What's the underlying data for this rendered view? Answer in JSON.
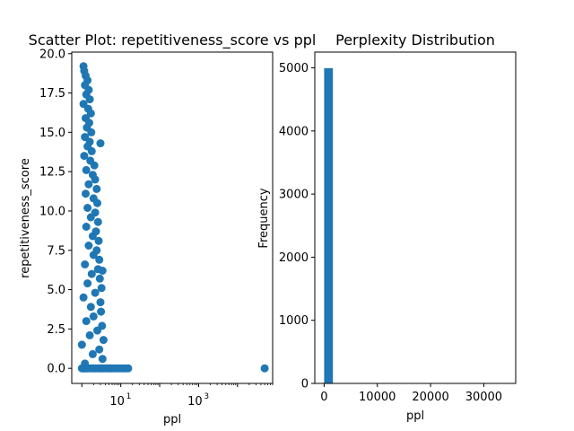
{
  "chart_data": [
    {
      "type": "scatter",
      "title": "Scatter Plot: repetitiveness_score vs ppl",
      "xlabel": "ppl",
      "ylabel": "repetitiveness_score",
      "xscale": "log",
      "xlim": [
        0.55,
        80000
      ],
      "ylim": [
        -0.96,
        20.1
      ],
      "x_ticks": [
        {
          "value": 10,
          "base": "10",
          "exp": "1"
        },
        {
          "value": 1000,
          "base": "10",
          "exp": "3"
        }
      ],
      "y_ticks": [
        "0.0",
        "2.5",
        "5.0",
        "7.5",
        "10.0",
        "12.5",
        "15.0",
        "17.5",
        "20.0"
      ],
      "marker_color": "#1f77b4",
      "grid": false,
      "series": [
        {
          "points": [
            [
              1.0,
              0
            ],
            [
              1.05,
              0
            ],
            [
              1.1,
              0
            ],
            [
              1.2,
              0
            ],
            [
              1.3,
              0
            ],
            [
              1.4,
              0
            ],
            [
              1.6,
              0
            ],
            [
              1.8,
              0
            ],
            [
              2.0,
              0
            ],
            [
              2.2,
              0
            ],
            [
              2.5,
              0
            ],
            [
              2.8,
              0
            ],
            [
              3.0,
              0
            ],
            [
              3.3,
              0
            ],
            [
              3.6,
              0
            ],
            [
              4.0,
              0
            ],
            [
              4.5,
              0
            ],
            [
              5.0,
              0
            ],
            [
              5.5,
              0
            ],
            [
              6.0,
              0
            ],
            [
              7.0,
              0
            ],
            [
              8.0,
              0
            ],
            [
              9.0,
              0
            ],
            [
              10.5,
              0
            ],
            [
              12.0,
              0
            ],
            [
              13.5,
              0
            ],
            [
              15.5,
              0
            ],
            [
              50000,
              0
            ],
            [
              1.1,
              19.2
            ],
            [
              1.15,
              18.9
            ],
            [
              1.25,
              18.6
            ],
            [
              1.4,
              18.3
            ],
            [
              1.2,
              18.0
            ],
            [
              1.5,
              17.7
            ],
            [
              1.3,
              17.4
            ],
            [
              1.6,
              17.1
            ],
            [
              1.1,
              16.8
            ],
            [
              1.45,
              16.5
            ],
            [
              1.7,
              16.2
            ],
            [
              1.25,
              15.9
            ],
            [
              1.55,
              15.6
            ],
            [
              1.35,
              15.3
            ],
            [
              1.75,
              15.0
            ],
            [
              1.2,
              14.7
            ],
            [
              1.6,
              14.4
            ],
            [
              3.0,
              14.3
            ],
            [
              1.4,
              14.1
            ],
            [
              1.8,
              13.8
            ],
            [
              1.15,
              13.5
            ],
            [
              1.65,
              13.2
            ],
            [
              2.1,
              12.9
            ],
            [
              1.3,
              12.6
            ],
            [
              1.9,
              12.3
            ],
            [
              2.2,
              12.0
            ],
            [
              1.5,
              11.7
            ],
            [
              2.4,
              11.4
            ],
            [
              1.25,
              11.1
            ],
            [
              2.0,
              10.8
            ],
            [
              2.5,
              10.5
            ],
            [
              1.4,
              10.2
            ],
            [
              2.2,
              9.9
            ],
            [
              1.7,
              9.6
            ],
            [
              2.6,
              9.3
            ],
            [
              1.3,
              9.0
            ],
            [
              2.3,
              8.7
            ],
            [
              1.9,
              8.4
            ],
            [
              2.7,
              8.1
            ],
            [
              1.5,
              7.8
            ],
            [
              2.4,
              7.5
            ],
            [
              2.0,
              7.2
            ],
            [
              2.8,
              6.9
            ],
            [
              1.2,
              6.6
            ],
            [
              2.6,
              6.3
            ],
            [
              3.4,
              6.2
            ],
            [
              1.8,
              6.0
            ],
            [
              2.9,
              5.7
            ],
            [
              1.4,
              5.4
            ],
            [
              3.2,
              5.1
            ],
            [
              2.2,
              4.8
            ],
            [
              1.1,
              4.5
            ],
            [
              3.0,
              4.2
            ],
            [
              1.7,
              3.9
            ],
            [
              3.1,
              3.6
            ],
            [
              2.0,
              3.3
            ],
            [
              1.3,
              3.0
            ],
            [
              3.3,
              2.7
            ],
            [
              2.5,
              2.4
            ],
            [
              1.6,
              2.1
            ],
            [
              3.6,
              1.8
            ],
            [
              1.0,
              1.5
            ],
            [
              2.8,
              1.2
            ],
            [
              1.9,
              0.9
            ],
            [
              3.4,
              0.6
            ],
            [
              1.2,
              0.3
            ]
          ]
        }
      ]
    },
    {
      "type": "bar",
      "title": "Perplexity Distribution",
      "xlabel": "ppl",
      "ylabel": "Frequency",
      "xlim": [
        -1750,
        36000
      ],
      "ylim": [
        0,
        5250
      ],
      "x_ticks": [
        "0",
        "10000",
        "20000",
        "30000"
      ],
      "y_ticks": [
        "0",
        "1000",
        "2000",
        "3000",
        "4000",
        "5000"
      ],
      "bar_color": "#1f77b4",
      "grid": false,
      "bins": [
        {
          "start": 0,
          "end": 1650,
          "value": 4995
        },
        {
          "start": 33000,
          "end": 34650,
          "value": 1
        }
      ]
    }
  ]
}
